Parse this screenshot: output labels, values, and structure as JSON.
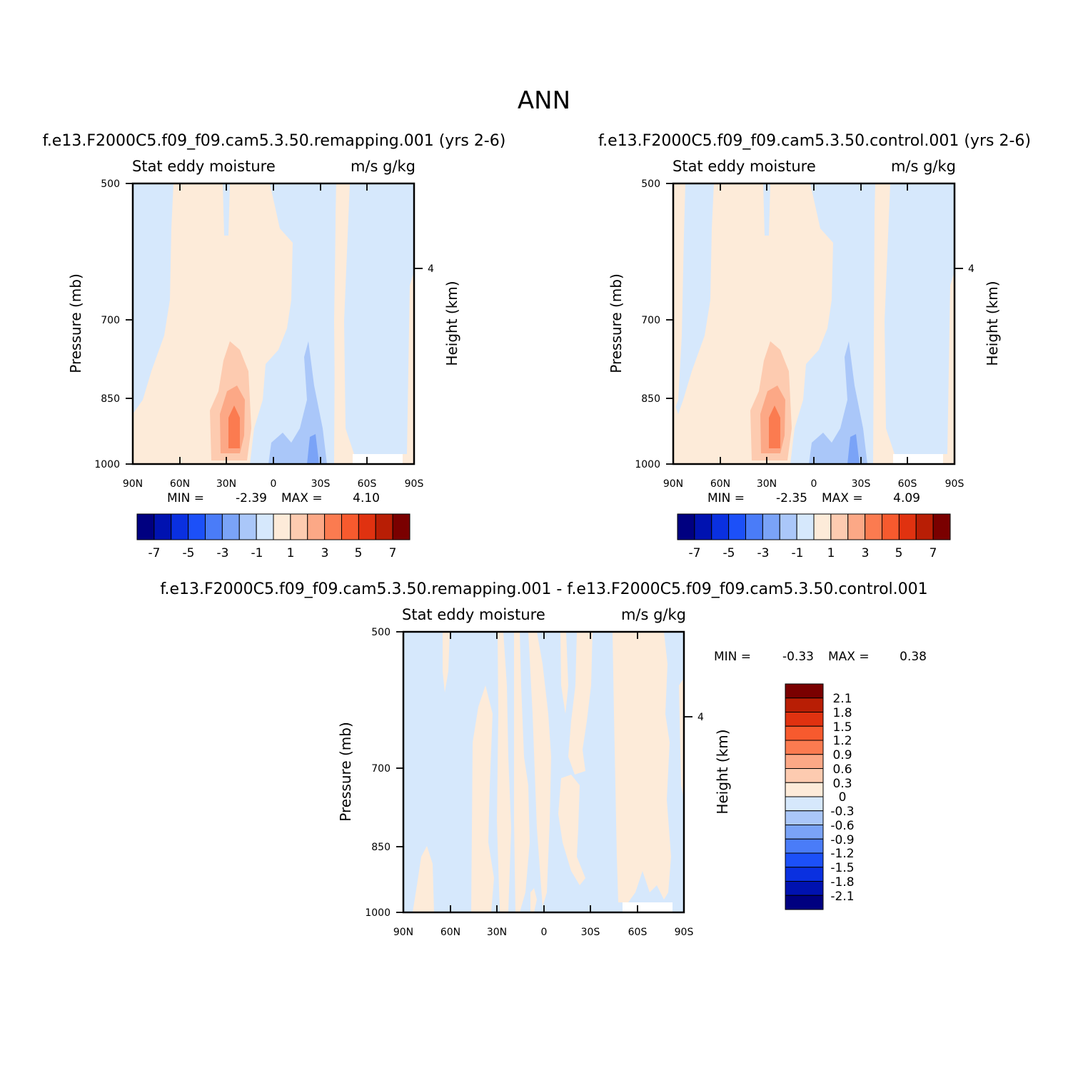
{
  "figure_title": "ANN",
  "colors": {
    "levels": [
      "#000080",
      "#0012b0",
      "#0a30e0",
      "#1c50f8",
      "#4a7cf8",
      "#7aa3f7",
      "#aac7f9",
      "#d6e8fc",
      "#fdebd9",
      "#fdcbb0",
      "#fca886",
      "#fb7b50",
      "#f75a2e",
      "#e03210",
      "#b81e05",
      "#7a0000"
    ],
    "diff_levels": [
      "#000080",
      "#0012b0",
      "#0a30e0",
      "#1c50f8",
      "#4a7cf8",
      "#7aa3f7",
      "#aac7f9",
      "#d6e8fc",
      "#fdebd9",
      "#fdcbb0",
      "#fca886",
      "#fb7b50",
      "#f75a2e",
      "#e03210",
      "#b81e05",
      "#7a0000"
    ]
  },
  "chart_data": [
    {
      "type": "heatmap",
      "case_title": "f.e13.F2000C5.f09_f09.cam5.3.50.remapping.001  (yrs 2-6)",
      "left_title": "Stat  eddy  moisture",
      "right_title": "m/s  g/kg",
      "ylabel": "Pressure  (mb)",
      "ylabel_right": "Height  (km)",
      "y_ticks": [
        "500",
        "700",
        "850",
        "1000"
      ],
      "y_right_ticks": [
        "4"
      ],
      "x_ticks": [
        "90N",
        "60N",
        "30N",
        "0",
        "30S",
        "60S",
        "90S"
      ],
      "xlim": [
        90,
        -90
      ],
      "ylim": [
        1000,
        500
      ],
      "stats": {
        "min_label": "MIN  =",
        "min": "-2.39",
        "max_label": "MAX  =",
        "max": "4.10"
      },
      "colorbar_labels": [
        "-7",
        "-5",
        "-3",
        "-1",
        "1",
        "3",
        "5",
        "7"
      ]
    },
    {
      "type": "heatmap",
      "case_title": "f.e13.F2000C5.f09_f09.cam5.3.50.control.001  (yrs 2-6)",
      "left_title": "Stat  eddy  moisture",
      "right_title": "m/s  g/kg",
      "ylabel": "Pressure  (mb)",
      "ylabel_right": "Height  (km)",
      "y_ticks": [
        "500",
        "700",
        "850",
        "1000"
      ],
      "y_right_ticks": [
        "4"
      ],
      "x_ticks": [
        "90N",
        "60N",
        "30N",
        "0",
        "30S",
        "60S",
        "90S"
      ],
      "xlim": [
        90,
        -90
      ],
      "ylim": [
        1000,
        500
      ],
      "stats": {
        "min_label": "MIN  =",
        "min": "-2.35",
        "max_label": "MAX  =",
        "max": "4.09"
      },
      "colorbar_labels": [
        "-7",
        "-5",
        "-3",
        "-1",
        "1",
        "3",
        "5",
        "7"
      ]
    },
    {
      "type": "heatmap",
      "case_title": "f.e13.F2000C5.f09_f09.cam5.3.50.remapping.001  -  f.e13.F2000C5.f09_f09.cam5.3.50.control.001",
      "left_title": "Stat  eddy  moisture",
      "right_title": "m/s  g/kg",
      "ylabel": "Pressure  (mb)",
      "ylabel_right": "Height  (km)",
      "y_ticks": [
        "500",
        "700",
        "850",
        "1000"
      ],
      "y_right_ticks": [
        "4"
      ],
      "x_ticks": [
        "90N",
        "60N",
        "30N",
        "0",
        "30S",
        "60S",
        "90S"
      ],
      "xlim": [
        90,
        -90
      ],
      "ylim": [
        1000,
        500
      ],
      "stats": {
        "min_label": "MIN  =",
        "min": "-0.33",
        "max_label": "MAX  =",
        "max": "0.38"
      },
      "colorbar_labels": [
        "2.1",
        "1.8",
        "1.5",
        "1.2",
        "0.9",
        "0.6",
        "0.3",
        "0",
        "-0.3",
        "-0.6",
        "-0.9",
        "-1.2",
        "-1.5",
        "-1.8",
        "-2.1"
      ]
    }
  ]
}
